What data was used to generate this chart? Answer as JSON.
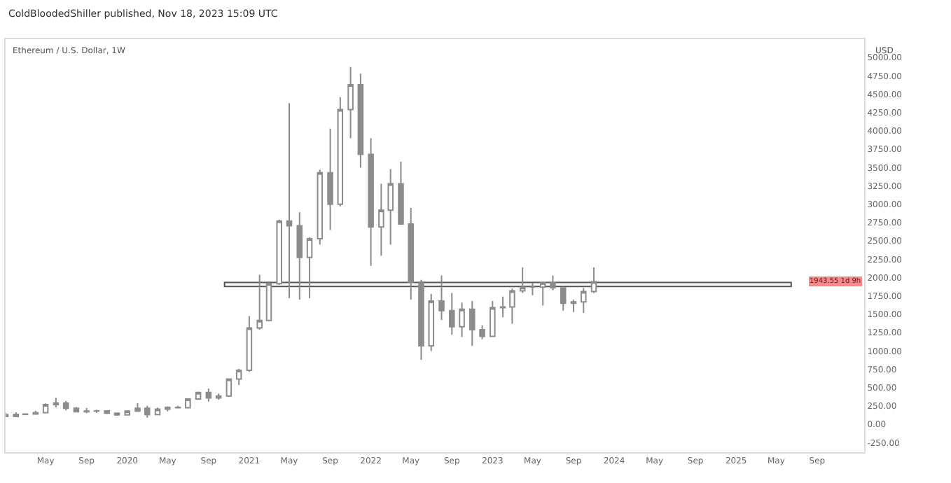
{
  "chart_data": {
    "type": "candlestick",
    "title": "ColdBloodedShiller published, Nov 18, 2023 15:09 UTC",
    "subtitle": "Ethereum / U.S. Dollar, 1W",
    "ylabel": "USD",
    "color": "#8c8c8c",
    "x": [
      "2019-01",
      "2019-02",
      "2019-03",
      "2019-04",
      "2019-05",
      "2019-06",
      "2019-07",
      "2019-08",
      "2019-09",
      "2019-10",
      "2019-11",
      "2019-12",
      "2020-01",
      "2020-02",
      "2020-03",
      "2020-04",
      "2020-05",
      "2020-06",
      "2020-07",
      "2020-08",
      "2020-09",
      "2020-10",
      "2020-11",
      "2020-12",
      "2021-01",
      "2021-02",
      "2021-03",
      "2021-04",
      "2021-05",
      "2021-06",
      "2021-07",
      "2021-08",
      "2021-09",
      "2021-10",
      "2021-11",
      "2021-12",
      "2022-01",
      "2022-02",
      "2022-03",
      "2022-04",
      "2022-05",
      "2022-06",
      "2022-07",
      "2022-08",
      "2022-09",
      "2022-10",
      "2022-11",
      "2022-12",
      "2023-01",
      "2023-02",
      "2023-03",
      "2023-04",
      "2023-05",
      "2023-06",
      "2023-07",
      "2023-08",
      "2023-09",
      "2023-10",
      "2023-11"
    ],
    "ohlc": [
      [
        133,
        159,
        102,
        107
      ],
      [
        107,
        165,
        102,
        136
      ],
      [
        136,
        149,
        127,
        141
      ],
      [
        141,
        185,
        138,
        160
      ],
      [
        160,
        285,
        157,
        268
      ],
      [
        268,
        362,
        230,
        290
      ],
      [
        290,
        317,
        190,
        218
      ],
      [
        218,
        236,
        164,
        172
      ],
      [
        172,
        224,
        153,
        180
      ],
      [
        180,
        199,
        155,
        182
      ],
      [
        182,
        193,
        140,
        152
      ],
      [
        152,
        153,
        116,
        129
      ],
      [
        129,
        184,
        127,
        180
      ],
      [
        180,
        288,
        178,
        218
      ],
      [
        218,
        253,
        90,
        133
      ],
      [
        133,
        228,
        127,
        206
      ],
      [
        206,
        245,
        176,
        231
      ],
      [
        231,
        253,
        216,
        225
      ],
      [
        225,
        349,
        222,
        346
      ],
      [
        346,
        446,
        335,
        434
      ],
      [
        434,
        489,
        310,
        360
      ],
      [
        360,
        420,
        335,
        386
      ],
      [
        386,
        623,
        374,
        616
      ],
      [
        616,
        755,
        535,
        737
      ],
      [
        737,
        1475,
        715,
        1314
      ],
      [
        1314,
        2040,
        1290,
        1416
      ],
      [
        1416,
        1945,
        1410,
        1918
      ],
      [
        1918,
        2790,
        1900,
        2772
      ],
      [
        2772,
        4380,
        1720,
        2707
      ],
      [
        2707,
        2890,
        1700,
        2275
      ],
      [
        2275,
        2550,
        1720,
        2530
      ],
      [
        2530,
        3470,
        2450,
        3430
      ],
      [
        3430,
        4030,
        2650,
        3000
      ],
      [
        3000,
        4460,
        2970,
        4290
      ],
      [
        4290,
        4870,
        3900,
        4630
      ],
      [
        4630,
        4780,
        3500,
        3680
      ],
      [
        3680,
        3900,
        2160,
        2690
      ],
      [
        2690,
        3280,
        2300,
        2920
      ],
      [
        2920,
        3480,
        2450,
        3280
      ],
      [
        3280,
        3580,
        2720,
        2730
      ],
      [
        2730,
        2950,
        1700,
        1940
      ],
      [
        1940,
        1970,
        880,
        1070
      ],
      [
        1070,
        1780,
        1000,
        1680
      ],
      [
        1680,
        2030,
        1420,
        1550
      ],
      [
        1550,
        1790,
        1220,
        1330
      ],
      [
        1330,
        1660,
        1190,
        1570
      ],
      [
        1570,
        1680,
        1070,
        1290
      ],
      [
        1290,
        1350,
        1160,
        1200
      ],
      [
        1200,
        1680,
        1190,
        1590
      ],
      [
        1590,
        1740,
        1460,
        1600
      ],
      [
        1600,
        1850,
        1370,
        1820
      ],
      [
        1820,
        2140,
        1790,
        1870
      ],
      [
        1870,
        1930,
        1760,
        1870
      ],
      [
        1870,
        1930,
        1620,
        1930
      ],
      [
        1930,
        2030,
        1830,
        1860
      ],
      [
        1860,
        1880,
        1550,
        1650
      ],
      [
        1650,
        1700,
        1530,
        1670
      ],
      [
        1670,
        1860,
        1520,
        1810
      ],
      [
        1810,
        2140,
        1790,
        1943.55
      ]
    ],
    "xlim": [
      "2019-01-01",
      "2026-01-20"
    ],
    "xticks": [
      {
        "value": "2019-05-01",
        "label": "May"
      },
      {
        "value": "2019-09-01",
        "label": "Sep"
      },
      {
        "value": "2020-01-01",
        "label": "2020"
      },
      {
        "value": "2020-05-01",
        "label": "May"
      },
      {
        "value": "2020-09-01",
        "label": "Sep"
      },
      {
        "value": "2021-01-01",
        "label": "2021"
      },
      {
        "value": "2021-05-01",
        "label": "May"
      },
      {
        "value": "2021-09-01",
        "label": "Sep"
      },
      {
        "value": "2022-01-01",
        "label": "2022"
      },
      {
        "value": "2022-05-01",
        "label": "May"
      },
      {
        "value": "2022-09-01",
        "label": "Sep"
      },
      {
        "value": "2023-01-01",
        "label": "2023"
      },
      {
        "value": "2023-05-01",
        "label": "May"
      },
      {
        "value": "2023-09-01",
        "label": "Sep"
      },
      {
        "value": "2024-01-01",
        "label": "2024"
      },
      {
        "value": "2024-05-01",
        "label": "May"
      },
      {
        "value": "2024-09-01",
        "label": "Sep"
      },
      {
        "value": "2025-01-01",
        "label": "2025"
      },
      {
        "value": "2025-05-01",
        "label": "May"
      },
      {
        "value": "2025-09-01",
        "label": "Sep"
      }
    ],
    "ylim": [
      -380,
      5250
    ],
    "yticks": [
      {
        "value": -250,
        "label": "-250.00"
      },
      {
        "value": 0,
        "label": "0.00"
      },
      {
        "value": 250,
        "label": "250.00"
      },
      {
        "value": 500,
        "label": "500.00"
      },
      {
        "value": 750,
        "label": "750.00"
      },
      {
        "value": 1000,
        "label": "1000.00"
      },
      {
        "value": 1250,
        "label": "1250.00"
      },
      {
        "value": 1500,
        "label": "1500.00"
      },
      {
        "value": 1750,
        "label": "1750.00"
      },
      {
        "value": 2000,
        "label": "2000.00"
      },
      {
        "value": 2250,
        "label": "2250.00"
      },
      {
        "value": 2500,
        "label": "2500.00"
      },
      {
        "value": 2750,
        "label": "2750.00"
      },
      {
        "value": 3000,
        "label": "3000.00"
      },
      {
        "value": 3250,
        "label": "3250.00"
      },
      {
        "value": 3500,
        "label": "3500.00"
      },
      {
        "value": 3750,
        "label": "3750.00"
      },
      {
        "value": 4000,
        "label": "4000.00"
      },
      {
        "value": 4250,
        "label": "4250.00"
      },
      {
        "value": 4500,
        "label": "4500.00"
      },
      {
        "value": 4750,
        "label": "4750.00"
      },
      {
        "value": 5000,
        "label": "5000.00"
      }
    ],
    "bands": [
      {
        "axis": "y",
        "from": 1880,
        "to": 1935,
        "color": "#ffffff"
      }
    ],
    "annotations": [
      "1943.55",
      "1d 9h"
    ]
  }
}
